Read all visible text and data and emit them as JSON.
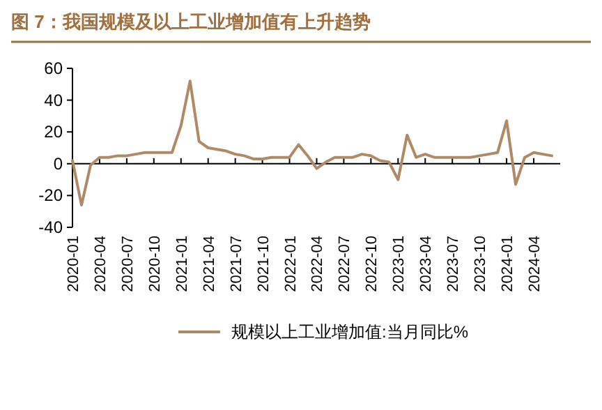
{
  "chart_data": {
    "type": "line",
    "title": "图 7：我国规模及以上工业增加值有上升趋势",
    "x": [
      "2020-01",
      "2020-02",
      "2020-03",
      "2020-04",
      "2020-05",
      "2020-06",
      "2020-07",
      "2020-08",
      "2020-09",
      "2020-10",
      "2020-11",
      "2020-12",
      "2021-01",
      "2021-02",
      "2021-03",
      "2021-04",
      "2021-05",
      "2021-06",
      "2021-07",
      "2021-08",
      "2021-09",
      "2021-10",
      "2021-11",
      "2021-12",
      "2022-01",
      "2022-02",
      "2022-03",
      "2022-04",
      "2022-05",
      "2022-06",
      "2022-07",
      "2022-08",
      "2022-09",
      "2022-10",
      "2022-11",
      "2022-12",
      "2023-01",
      "2023-02",
      "2023-03",
      "2023-04",
      "2023-05",
      "2023-06",
      "2023-07",
      "2023-08",
      "2023-09",
      "2023-10",
      "2023-11",
      "2023-12",
      "2024-01",
      "2024-02",
      "2024-03",
      "2024-04",
      "2024-05",
      "2024-06"
    ],
    "series": [
      {
        "name": "规模以上工业增加值:当月同比%",
        "color": "#b08a66",
        "values": [
          2,
          -26,
          -1,
          4,
          4,
          5,
          5,
          6,
          7,
          7,
          7,
          7,
          24,
          52,
          14,
          10,
          9,
          8,
          6,
          5,
          3,
          3,
          4,
          4,
          4,
          12,
          5,
          -3,
          1,
          4,
          4,
          4,
          6,
          5,
          2,
          1,
          -10,
          18,
          4,
          6,
          4,
          4,
          4,
          4,
          4,
          5,
          6,
          7,
          27,
          -13,
          4,
          7,
          6,
          5
        ]
      }
    ],
    "xlim": [
      "2020-01",
      "2024-06"
    ],
    "xticks": [
      "2020-01",
      "2020-04",
      "2020-07",
      "2020-10",
      "2021-01",
      "2021-04",
      "2021-07",
      "2021-10",
      "2022-01",
      "2022-04",
      "2022-07",
      "2022-10",
      "2023-01",
      "2023-04",
      "2023-07",
      "2023-10",
      "2024-01",
      "2024-04"
    ],
    "ylim": [
      -40,
      60
    ],
    "yticks": [
      -40,
      -20,
      0,
      20,
      40,
      60
    ],
    "legend": "bottom"
  }
}
